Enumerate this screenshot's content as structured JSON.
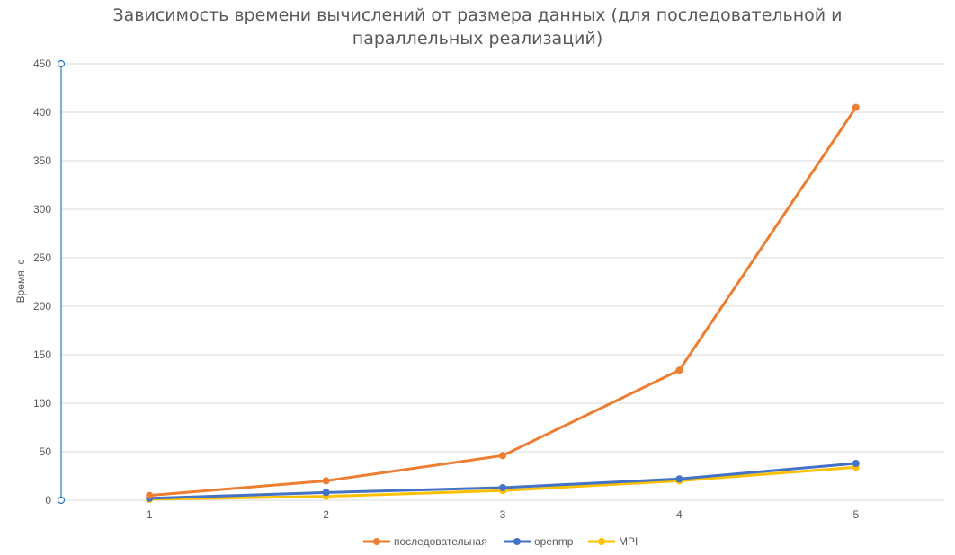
{
  "chart_data": {
    "type": "line",
    "title_line1": "Зависимость времени вычислений от размера данных (для последовательной и",
    "title_line2": "параллельных реализаций)",
    "ylabel": "Время, с",
    "xlabel": "",
    "x": [
      1,
      2,
      3,
      4,
      5
    ],
    "x_tick_labels": [
      "1",
      "2",
      "3",
      "4",
      "5"
    ],
    "ylim": [
      0,
      450
    ],
    "y_ticks": [
      0,
      50,
      100,
      150,
      200,
      250,
      300,
      350,
      400,
      450
    ],
    "y_tick_labels": [
      "0",
      "50",
      "100",
      "150",
      "200",
      "250",
      "300",
      "350",
      "400",
      "450"
    ],
    "grid": true,
    "legend_position": "bottom",
    "series": [
      {
        "name": "последовательная",
        "color": "#ED7D31",
        "values": [
          5,
          20,
          46,
          134,
          405
        ]
      },
      {
        "name": "openmp",
        "color": "#4472C4",
        "values": [
          2,
          8,
          13,
          22,
          38
        ]
      },
      {
        "name": "MPI",
        "color": "#FFC000",
        "values": [
          1,
          4,
          10,
          20,
          34
        ]
      }
    ]
  }
}
